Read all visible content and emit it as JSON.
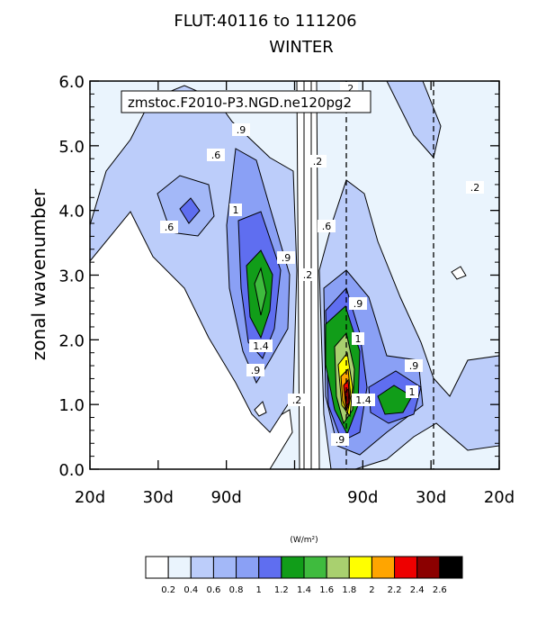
{
  "chart_data": {
    "type": "contour",
    "title": "FLUT:40116 to 111206",
    "subtitle": "WINTER",
    "annotation": "zmstoc.F2010-P3.NGD.ne120pg2",
    "ylabel": "zonal wavenumber",
    "xlabel": "",
    "ylim": [
      0,
      6
    ],
    "y_ticks": [
      "0.0",
      "1.0",
      "2.0",
      "3.0",
      "4.0",
      "5.0",
      "6.0"
    ],
    "x_ticks": [
      "20d",
      "30d",
      "90d",
      "",
      "90d",
      "30d",
      "20d"
    ],
    "dashed_x_at": [
      "90d",
      "30d"
    ],
    "units": "(W/m²)",
    "colorbar": {
      "labels": [
        "0.2",
        "0.4",
        "0.6",
        "0.8",
        "1",
        "1.2",
        "1.4",
        "1.6",
        "1.8",
        "2",
        "2.2",
        "2.4",
        "2.6"
      ],
      "colors": [
        "#ffffff",
        "#eaf4fd",
        "#bccdfa",
        "#a3b8f8",
        "#8aa0f5",
        "#5f6ef0",
        "#119d19",
        "#3fbb3e",
        "#a9d06f",
        "#ffff00",
        "#ffa500",
        "#ee0000",
        "#8b0000",
        "#000000"
      ]
    },
    "contour_labels": [
      ".6",
      ".9",
      ".6",
      "1",
      ".9",
      "1.4",
      ".9",
      ".2",
      ".2",
      ".6",
      ".2",
      ".9",
      "1",
      "1.4",
      ".9",
      ".9",
      "1",
      ".2",
      ".2"
    ]
  }
}
